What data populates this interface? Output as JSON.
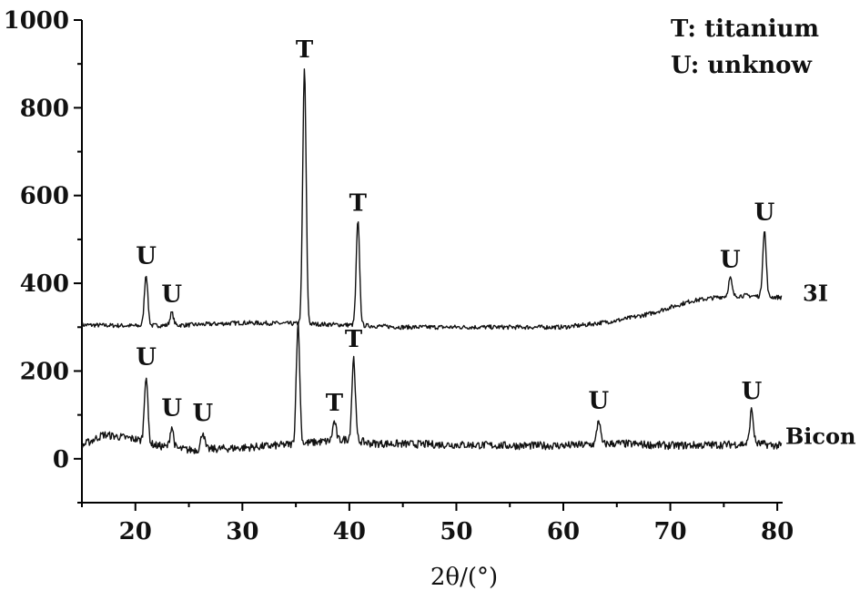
{
  "chart_data": {
    "type": "line",
    "title": "",
    "xlabel": "2θ/(°)",
    "ylabel": "",
    "xlim": [
      15,
      80.5
    ],
    "ylim": [
      -100,
      1000
    ],
    "x_ticks": [
      20,
      30,
      40,
      50,
      60,
      70,
      80
    ],
    "y_ticks": [
      0,
      200,
      400,
      600,
      800,
      1000
    ],
    "grid": false,
    "legend_position": "top-right",
    "legend": [
      "T: titanium",
      "U: unknow"
    ],
    "series": [
      {
        "name": "3I",
        "baseline": [
          [
            15,
            305
          ],
          [
            20,
            303
          ],
          [
            25,
            305
          ],
          [
            30,
            310
          ],
          [
            35,
            308
          ],
          [
            40,
            305
          ],
          [
            45,
            300
          ],
          [
            50,
            300
          ],
          [
            55,
            300
          ],
          [
            60,
            300
          ],
          [
            62,
            305
          ],
          [
            65,
            315
          ],
          [
            68,
            330
          ],
          [
            70,
            345
          ],
          [
            72,
            360
          ],
          [
            75,
            370
          ],
          [
            77,
            372
          ],
          [
            80,
            368
          ]
        ],
        "noise": 5,
        "peaks": [
          {
            "x": 21.0,
            "y": 420,
            "label": "U"
          },
          {
            "x": 23.4,
            "y": 333,
            "label": "U"
          },
          {
            "x": 35.8,
            "y": 890,
            "label": "T"
          },
          {
            "x": 40.8,
            "y": 540,
            "label": "T"
          },
          {
            "x": 75.6,
            "y": 412,
            "label": "U"
          },
          {
            "x": 78.8,
            "y": 520,
            "label": "U"
          }
        ]
      },
      {
        "name": "Bicon",
        "baseline": [
          [
            15,
            30
          ],
          [
            17,
            55
          ],
          [
            20,
            45
          ],
          [
            22,
            30
          ],
          [
            25,
            20
          ],
          [
            30,
            25
          ],
          [
            33,
            30
          ],
          [
            38,
            40
          ],
          [
            40,
            45
          ],
          [
            42,
            35
          ],
          [
            50,
            32
          ],
          [
            55,
            30
          ],
          [
            60,
            30
          ],
          [
            65,
            35
          ],
          [
            70,
            30
          ],
          [
            75,
            32
          ],
          [
            78,
            35
          ],
          [
            80,
            30
          ]
        ],
        "noise": 9,
        "peaks": [
          {
            "x": 21.0,
            "y": 190,
            "label": "U"
          },
          {
            "x": 23.4,
            "y": 73,
            "label": "U"
          },
          {
            "x": 26.3,
            "y": 62,
            "label": "U"
          },
          {
            "x": 35.2,
            "y": 310,
            "label": ""
          },
          {
            "x": 38.6,
            "y": 85,
            "label": "T"
          },
          {
            "x": 40.4,
            "y": 230,
            "label": "T"
          },
          {
            "x": 63.3,
            "y": 90,
            "label": "U"
          },
          {
            "x": 77.6,
            "y": 112,
            "label": "U"
          }
        ]
      }
    ]
  }
}
